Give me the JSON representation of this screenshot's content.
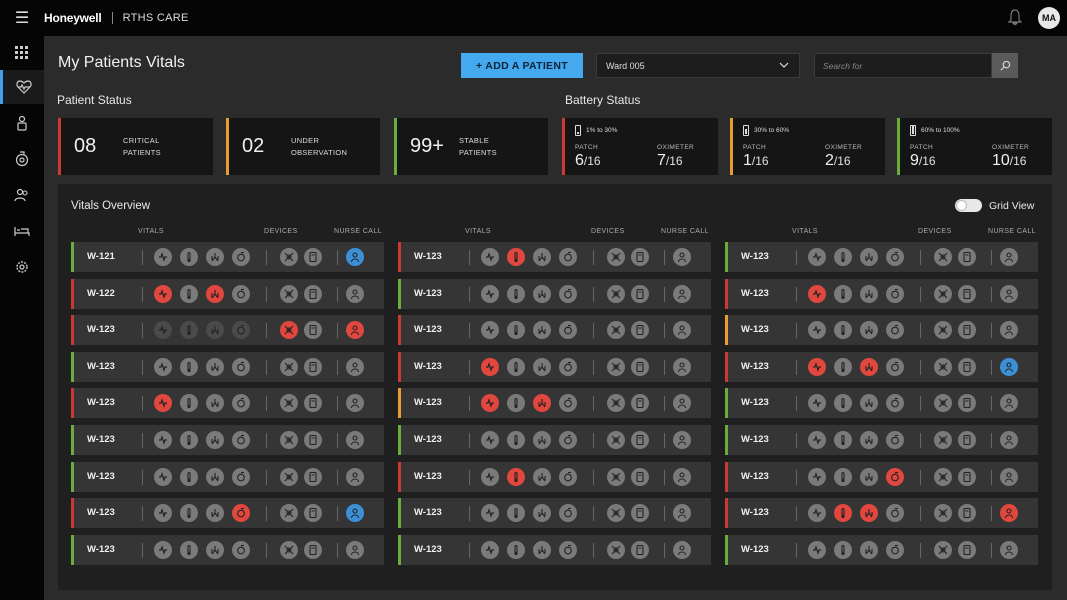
{
  "topbar": {
    "menu_icon": "hamburger-icon",
    "brand": "Honeywell",
    "app_name": "RTHS CARE",
    "user_initials": "MA"
  },
  "sidebar": {
    "items": [
      {
        "icon": "grid-icon",
        "active": false
      },
      {
        "icon": "heart-pulse-icon",
        "active": true
      },
      {
        "icon": "patient-icon",
        "active": false
      },
      {
        "icon": "device-icon",
        "active": false
      },
      {
        "icon": "users-icon",
        "active": false
      },
      {
        "icon": "bed-icon",
        "active": false
      },
      {
        "icon": "settings-icon",
        "active": false
      }
    ]
  },
  "header": {
    "title": "My Patients Vitals",
    "add_button": "+ ADD A PATIENT",
    "ward_value": "Ward 005",
    "search_placeholder": "Search for"
  },
  "patient_status": {
    "title": "Patient Status",
    "cards": [
      {
        "value": "08",
        "line1": "CRITICAL",
        "line2": "PATIENTS",
        "color": "#c93a34"
      },
      {
        "value": "02",
        "line1": "UNDER",
        "line2": "OBSERVATION",
        "color": "#e89e2e"
      },
      {
        "value": "99+",
        "line1": "STABLE",
        "line2": "PATIENTS",
        "color": "#6aad3c"
      }
    ]
  },
  "battery_status": {
    "title": "Battery Status",
    "cards": [
      {
        "range": "1% to 30%",
        "patch_label": "PATCH",
        "patch_value": "6",
        "patch_total": "/16",
        "oxi_label": "OXIMETER",
        "oxi_value": "7",
        "oxi_total": "/16",
        "color": "#c93a34"
      },
      {
        "range": "30% to 60%",
        "patch_label": "PATCH",
        "patch_value": "1",
        "patch_total": "/16",
        "oxi_label": "OXIMETER",
        "oxi_value": "2",
        "oxi_total": "/16",
        "color": "#e89e2e"
      },
      {
        "range": "60% to 100%",
        "patch_label": "PATCH",
        "patch_value": "9",
        "patch_total": "/16",
        "oxi_label": "OXIMETER",
        "oxi_value": "10",
        "oxi_total": "/16",
        "color": "#6aad3c"
      }
    ]
  },
  "vitals": {
    "title": "Vitals Overview",
    "toggle_label": "Grid View",
    "headers": {
      "vitals": "VITALS",
      "devices": "DEVICES",
      "nurse_call": "NURSE CALL"
    },
    "status_colors": {
      "red": "#c93a34",
      "orange": "#e89e2e",
      "green": "#6aad3c"
    },
    "icon_legend": {
      "g": "normal",
      "r": "alert",
      "b": "nurse-call-active",
      "d": "inactive"
    },
    "columns": [
      [
        {
          "bed": "W-121",
          "status": "green",
          "icons": "ggggggb"
        },
        {
          "bed": "W-122",
          "status": "red",
          "icons": "rgrgggg"
        },
        {
          "bed": "W-123",
          "status": "red",
          "icons": "ddddrgr"
        },
        {
          "bed": "W-123",
          "status": "green",
          "icons": "ggggggg"
        },
        {
          "bed": "W-123",
          "status": "red",
          "icons": "rggggg g"
        },
        {
          "bed": "W-123",
          "status": "green",
          "icons": "ggggggg"
        },
        {
          "bed": "W-123",
          "status": "green",
          "icons": "ggggggg"
        },
        {
          "bed": "W-123",
          "status": "red",
          "icons": "gggrggb"
        },
        {
          "bed": "W-123",
          "status": "green",
          "icons": "ggggggg"
        }
      ],
      [
        {
          "bed": "W-123",
          "status": "red",
          "icons": "grgg ggg"
        },
        {
          "bed": "W-123",
          "status": "green",
          "icons": "ggggggg"
        },
        {
          "bed": "W-123",
          "status": "red",
          "icons": "ggggggg"
        },
        {
          "bed": "W-123",
          "status": "red",
          "icons": "rggg ggg"
        },
        {
          "bed": "W-123",
          "status": "orange",
          "icons": "rgrgggg"
        },
        {
          "bed": "W-123",
          "status": "green",
          "icons": "ggggggg"
        },
        {
          "bed": "W-123",
          "status": "red",
          "icons": "grgg ggg"
        },
        {
          "bed": "W-123",
          "status": "green",
          "icons": "ggggggg"
        },
        {
          "bed": "W-123",
          "status": "green",
          "icons": "ggggggg"
        }
      ],
      [
        {
          "bed": "W-123",
          "status": "green",
          "icons": "ggggggg"
        },
        {
          "bed": "W-123",
          "status": "red",
          "icons": "rggg ggg"
        },
        {
          "bed": "W-123",
          "status": "orange",
          "icons": "ggggggg"
        },
        {
          "bed": "W-123",
          "status": "red",
          "icons": "rgrgggb"
        },
        {
          "bed": "W-123",
          "status": "green",
          "icons": "ggggggg"
        },
        {
          "bed": "W-123",
          "status": "green",
          "icons": "ggggggg"
        },
        {
          "bed": "W-123",
          "status": "red",
          "icons": "gggrggg"
        },
        {
          "bed": "W-123",
          "status": "red",
          "icons": "grrgggr"
        },
        {
          "bed": "W-123",
          "status": "green",
          "icons": "ggggggg"
        }
      ]
    ]
  }
}
